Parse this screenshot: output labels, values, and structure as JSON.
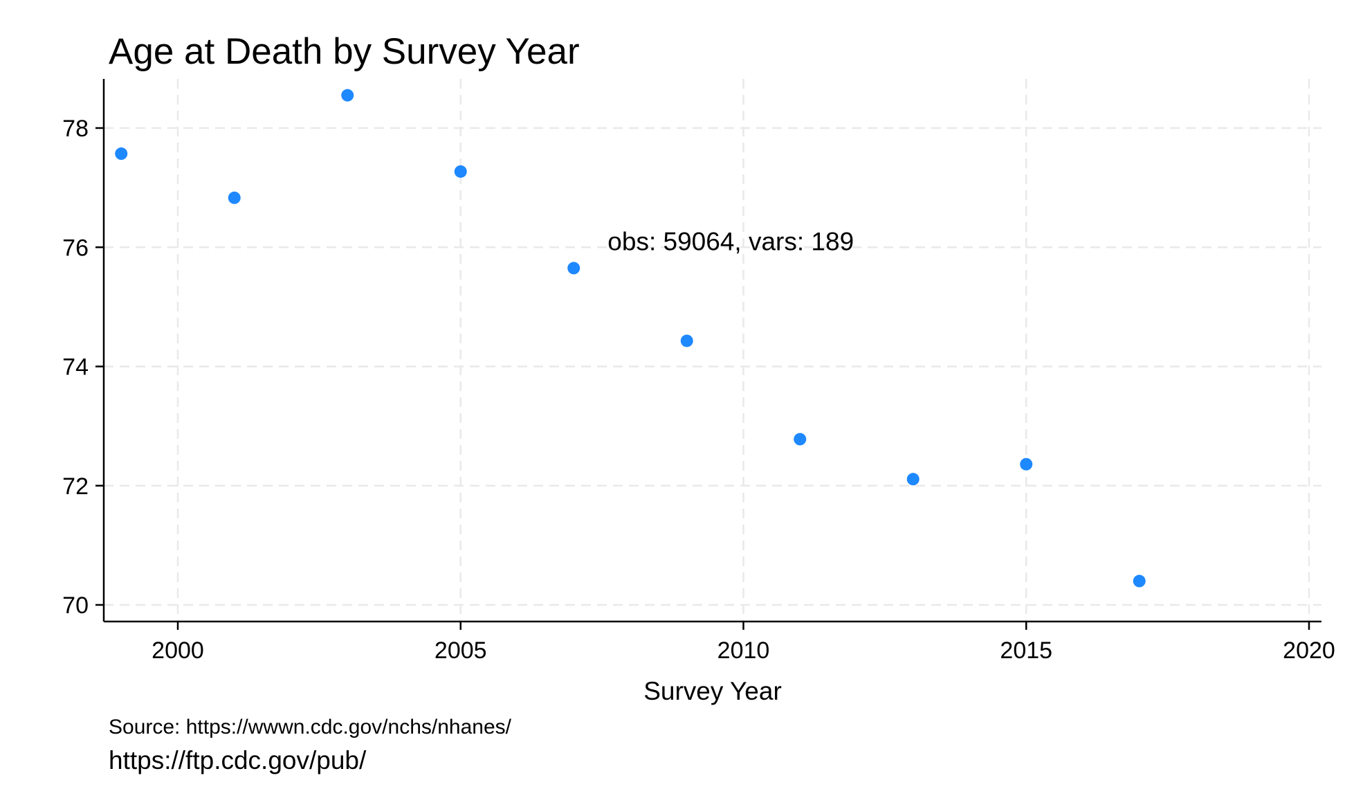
{
  "chart_data": {
    "type": "scatter",
    "title": "Age at Death by Survey Year",
    "xlabel": "Survey Year",
    "ylabel": "",
    "xlim": [
      1998.7,
      2020.3
    ],
    "ylim": [
      69.7,
      78.85
    ],
    "xticks": [
      2000,
      2005,
      2010,
      2015,
      2020
    ],
    "yticks": [
      70,
      72,
      74,
      76,
      78
    ],
    "grid": true,
    "marker_color": "#1e88ff",
    "x": [
      1999,
      2001,
      2003,
      2005,
      2007,
      2009,
      2011,
      2013,
      2015,
      2017
    ],
    "y": [
      77.57,
      76.83,
      78.55,
      77.27,
      75.65,
      74.43,
      72.78,
      72.11,
      72.36,
      70.4
    ],
    "annotation": "obs: 59064, vars: 189",
    "annotation_at": [
      2007.6,
      75.95
    ],
    "note_source": "Source: https://wwwn.cdc.gov/nchs/nhanes/",
    "note_url": "https://ftp.cdc.gov/pub/"
  }
}
